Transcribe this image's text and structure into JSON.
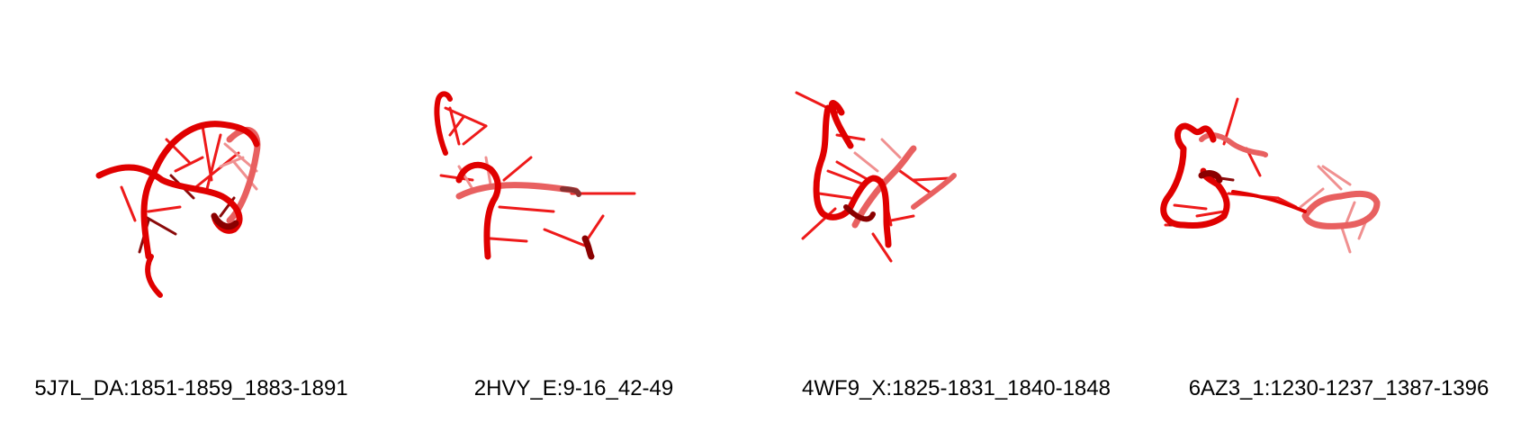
{
  "palette": {
    "backbone": "#e00000",
    "backbone_dark": "#8a0000",
    "backbone_light": "#e86060",
    "base": "#ee1a1a",
    "base_dark": "#7a0a0a"
  },
  "panels": [
    {
      "caption": "5J7L_DA:1851-1859_1883-1891"
    },
    {
      "caption": "2HVY_E:9-16_42-49"
    },
    {
      "caption": "4WF9_X:1825-1831_1840-1848"
    },
    {
      "caption": "6AZ3_1:1230-1237_1387-1396"
    }
  ]
}
